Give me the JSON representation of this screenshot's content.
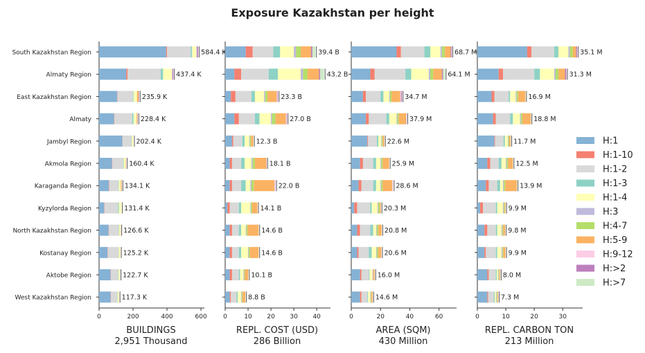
{
  "chart_data": {
    "type": "bar",
    "title": "Exposure Kazakhstan per height",
    "categories": [
      "South Kazakhstan Region",
      "Almaty Region",
      "East Kazakhstan Region",
      "Almaty",
      "Jambyl Region",
      "Akmola Region",
      "Karaganda Region",
      "Kyzylorda Region",
      "North Kazakhstan Region",
      "Kostanay Region",
      "Aktobe Region",
      "West Kazakhstan Region"
    ],
    "legend": {
      "placement": "right",
      "entries": [
        {
          "name": "H:1",
          "color": "#85b2d5"
        },
        {
          "name": "H:1-10",
          "color": "#f4806f"
        },
        {
          "name": "H:1-2",
          "color": "#d9d9d9"
        },
        {
          "name": "H:1-3",
          "color": "#8dd2c5"
        },
        {
          "name": "H:1-4",
          "color": "#ffffb6"
        },
        {
          "name": "H:3",
          "color": "#bfbadb"
        },
        {
          "name": "H:4-7",
          "color": "#b4de6a"
        },
        {
          "name": "H:5-9",
          "color": "#fbb363"
        },
        {
          "name": "H:9-12",
          "color": "#fccde5"
        },
        {
          "name": "H:>2",
          "color": "#bd80bd"
        },
        {
          "name": "H:>7",
          "color": "#cdeac5"
        }
      ]
    },
    "panels": [
      {
        "xlabel": "BUILDINGS",
        "subtitle": "2,951 Thousand",
        "xlim": [
          0,
          620
        ],
        "ticks": [
          0,
          200,
          400,
          600
        ],
        "totals": [
          "584.4 K",
          "437.4 K",
          "235.9 K",
          "228.4 K",
          "202.4 K",
          "160.4 K",
          "134.1 K",
          "131.4 K",
          "126.6 K",
          "125.2 K",
          "122.7 K",
          "117.3 K"
        ],
        "segments": [
          [
            395,
            5,
            140,
            8,
            25,
            4,
            0,
            0,
            0,
            7,
            0
          ],
          [
            160,
            8,
            195,
            14,
            52,
            3,
            0,
            0,
            0,
            5,
            0
          ],
          [
            107,
            2,
            90,
            4,
            20,
            0,
            0,
            10,
            0,
            3,
            0
          ],
          [
            88,
            2,
            105,
            8,
            18,
            0,
            0,
            5,
            0,
            2,
            0
          ],
          [
            137,
            1,
            52,
            2,
            10,
            0,
            0,
            0,
            0,
            0,
            0
          ],
          [
            76,
            2,
            64,
            3,
            12,
            0,
            0,
            2,
            0,
            1,
            0
          ],
          [
            57,
            2,
            54,
            3,
            12,
            0,
            0,
            5,
            0,
            1,
            0
          ],
          [
            30,
            2,
            80,
            5,
            14,
            0,
            0,
            0,
            0,
            0,
            0
          ],
          [
            56,
            2,
            56,
            3,
            8,
            0,
            0,
            2,
            0,
            0,
            0
          ],
          [
            50,
            2,
            62,
            2,
            8,
            0,
            0,
            1,
            0,
            0,
            0
          ],
          [
            68,
            2,
            42,
            2,
            8,
            0,
            0,
            1,
            0,
            0,
            0
          ],
          [
            68,
            2,
            36,
            2,
            8,
            0,
            0,
            1,
            0,
            0,
            0
          ]
        ]
      },
      {
        "xlabel": "REPL. COST (USD)",
        "subtitle": "286 Billion",
        "xlim": [
          0,
          46
        ],
        "ticks": [
          0,
          10,
          20,
          30,
          40
        ],
        "totals": [
          "39.4 B",
          "43.2 B",
          "23.3 B",
          "27.0 B",
          "12.3 B",
          "18.1 B",
          "22.0 B",
          "14.1 B",
          "14.6 B",
          "14.6 B",
          "10.1 B",
          "8.8 B"
        ],
        "segments": [
          [
            9,
            3,
            9,
            3,
            6,
            1,
            2,
            4.5,
            0,
            0.6,
            1.3
          ],
          [
            4,
            3,
            12,
            4,
            10,
            1,
            2,
            5,
            0,
            0.5,
            1.7
          ],
          [
            2.5,
            2,
            7,
            1.5,
            4,
            0.5,
            1,
            4,
            0.3,
            0.3,
            0
          ],
          [
            4,
            2,
            7,
            2,
            5,
            0.5,
            1.5,
            4.5,
            0.3,
            0.2,
            0
          ],
          [
            3,
            0.5,
            4,
            1,
            2,
            0.3,
            0.5,
            1,
            0,
            0,
            0
          ],
          [
            2,
            1,
            4,
            1.5,
            3,
            0.5,
            1,
            5,
            0,
            0.1,
            0
          ],
          [
            2,
            1,
            4,
            2,
            2,
            0.5,
            1,
            9,
            0.4,
            0.1,
            0
          ],
          [
            1,
            1,
            4,
            1,
            4,
            0.3,
            0.5,
            2.3,
            0,
            0,
            0
          ],
          [
            2,
            1,
            3,
            1,
            2,
            0.3,
            0.5,
            4.8,
            0,
            0,
            0
          ],
          [
            2,
            1,
            3,
            1,
            3,
            0.3,
            0.5,
            3.8,
            0,
            0,
            0
          ],
          [
            2,
            1,
            3,
            0.5,
            1.5,
            0.3,
            0.3,
            1.5,
            0,
            0,
            0
          ],
          [
            2,
            0.5,
            2.5,
            0.5,
            1.5,
            0.3,
            0.3,
            1.2,
            0,
            0,
            0
          ]
        ]
      },
      {
        "xlabel": "AREA (SQM)",
        "subtitle": "430 Million",
        "xlim": [
          0,
          72
        ],
        "ticks": [
          0,
          20,
          40,
          60
        ],
        "totals": [
          "68.7 M",
          "64.1 M",
          "34.7 M",
          "37.9 M",
          "22.6 M",
          "25.9 M",
          "28.6 M",
          "20.3 M",
          "20.8 M",
          "20.6 M",
          "16.0 M",
          "14.6 M"
        ],
        "segments": [
          [
            31,
            3,
            16,
            4,
            7,
            1,
            2,
            4,
            0,
            0.7,
            0
          ],
          [
            13,
            3,
            21,
            4,
            12,
            1,
            2,
            6,
            0,
            0.7,
            1.4
          ],
          [
            8,
            2,
            10,
            2,
            4,
            0.5,
            1,
            6,
            0.5,
            0.7,
            0
          ],
          [
            10,
            2,
            12,
            2,
            5,
            0.5,
            1,
            5,
            0.2,
            0.2,
            0
          ],
          [
            11,
            0.5,
            6,
            1,
            2,
            0.5,
            0.5,
            1.1,
            0,
            0,
            0
          ],
          [
            6,
            2,
            7,
            2,
            3,
            0.5,
            1,
            4.4,
            0,
            0,
            0
          ],
          [
            5,
            2,
            8,
            2,
            3,
            0.5,
            1,
            6.6,
            0.5,
            0,
            0
          ],
          [
            2,
            2,
            9,
            1,
            4,
            0.5,
            1,
            0.8,
            0,
            0,
            0
          ],
          [
            4,
            2,
            7,
            2,
            2,
            0.5,
            1,
            2.3,
            0,
            0,
            0
          ],
          [
            4,
            1,
            7,
            2,
            3,
            0.5,
            1,
            2.1,
            0,
            0,
            0
          ],
          [
            6,
            1,
            5,
            0.5,
            2,
            0.5,
            0,
            1,
            0,
            0,
            0
          ],
          [
            6,
            1,
            4,
            0.5,
            1.5,
            0.3,
            0.3,
            1,
            0,
            0,
            0
          ]
        ]
      },
      {
        "xlabel": "REPL. CARBON TON",
        "subtitle": "213 Million",
        "xlim": [
          0,
          37
        ],
        "ticks": [
          0,
          10,
          20,
          30
        ],
        "totals": [
          "35.1 M",
          "31.3 M",
          "16.9 M",
          "18.8 M",
          "11.7 M",
          "12.5 M",
          "13.9 M",
          "9.9 M",
          "9.8 M",
          "9.9 M",
          "8.0 M",
          "7.3 M"
        ],
        "segments": [
          [
            17.5,
            1.5,
            8,
            1.5,
            3.5,
            0.5,
            1,
            1.2,
            0,
            0.4,
            0
          ],
          [
            7.5,
            1.5,
            11,
            2,
            5,
            0.5,
            1,
            2.3,
            0,
            0.5,
            0
          ],
          [
            5,
            1,
            5,
            0.5,
            2,
            0.3,
            0.5,
            2.6,
            0,
            0,
            0
          ],
          [
            5.5,
            1,
            5,
            1,
            2.5,
            0.3,
            0.5,
            3,
            0,
            0,
            0
          ],
          [
            6,
            0.2,
            3,
            0.5,
            1,
            0.2,
            0.3,
            0.5,
            0,
            0,
            0
          ],
          [
            3.5,
            1,
            3,
            1,
            1.5,
            0.3,
            0.5,
            1.7,
            0,
            0,
            0
          ],
          [
            3,
            1,
            3,
            1,
            1,
            0.3,
            0.5,
            4.1,
            0,
            0,
            0
          ],
          [
            1,
            1,
            4.5,
            0.5,
            2,
            0.3,
            0.3,
            0.3,
            0,
            0,
            0
          ],
          [
            2.5,
            1,
            3,
            0.5,
            1.5,
            0.3,
            0.3,
            0.7,
            0,
            0,
            0
          ],
          [
            2.5,
            0.5,
            3.5,
            0.5,
            1.5,
            0.3,
            0.3,
            0.8,
            0,
            0,
            0
          ],
          [
            3.5,
            0.5,
            2.5,
            0.3,
            0.5,
            0.2,
            0.2,
            0.3,
            0,
            0,
            0
          ],
          [
            3.5,
            0.3,
            2,
            0.3,
            0.5,
            0.2,
            0.2,
            0.3,
            0,
            0,
            0
          ]
        ]
      }
    ]
  }
}
